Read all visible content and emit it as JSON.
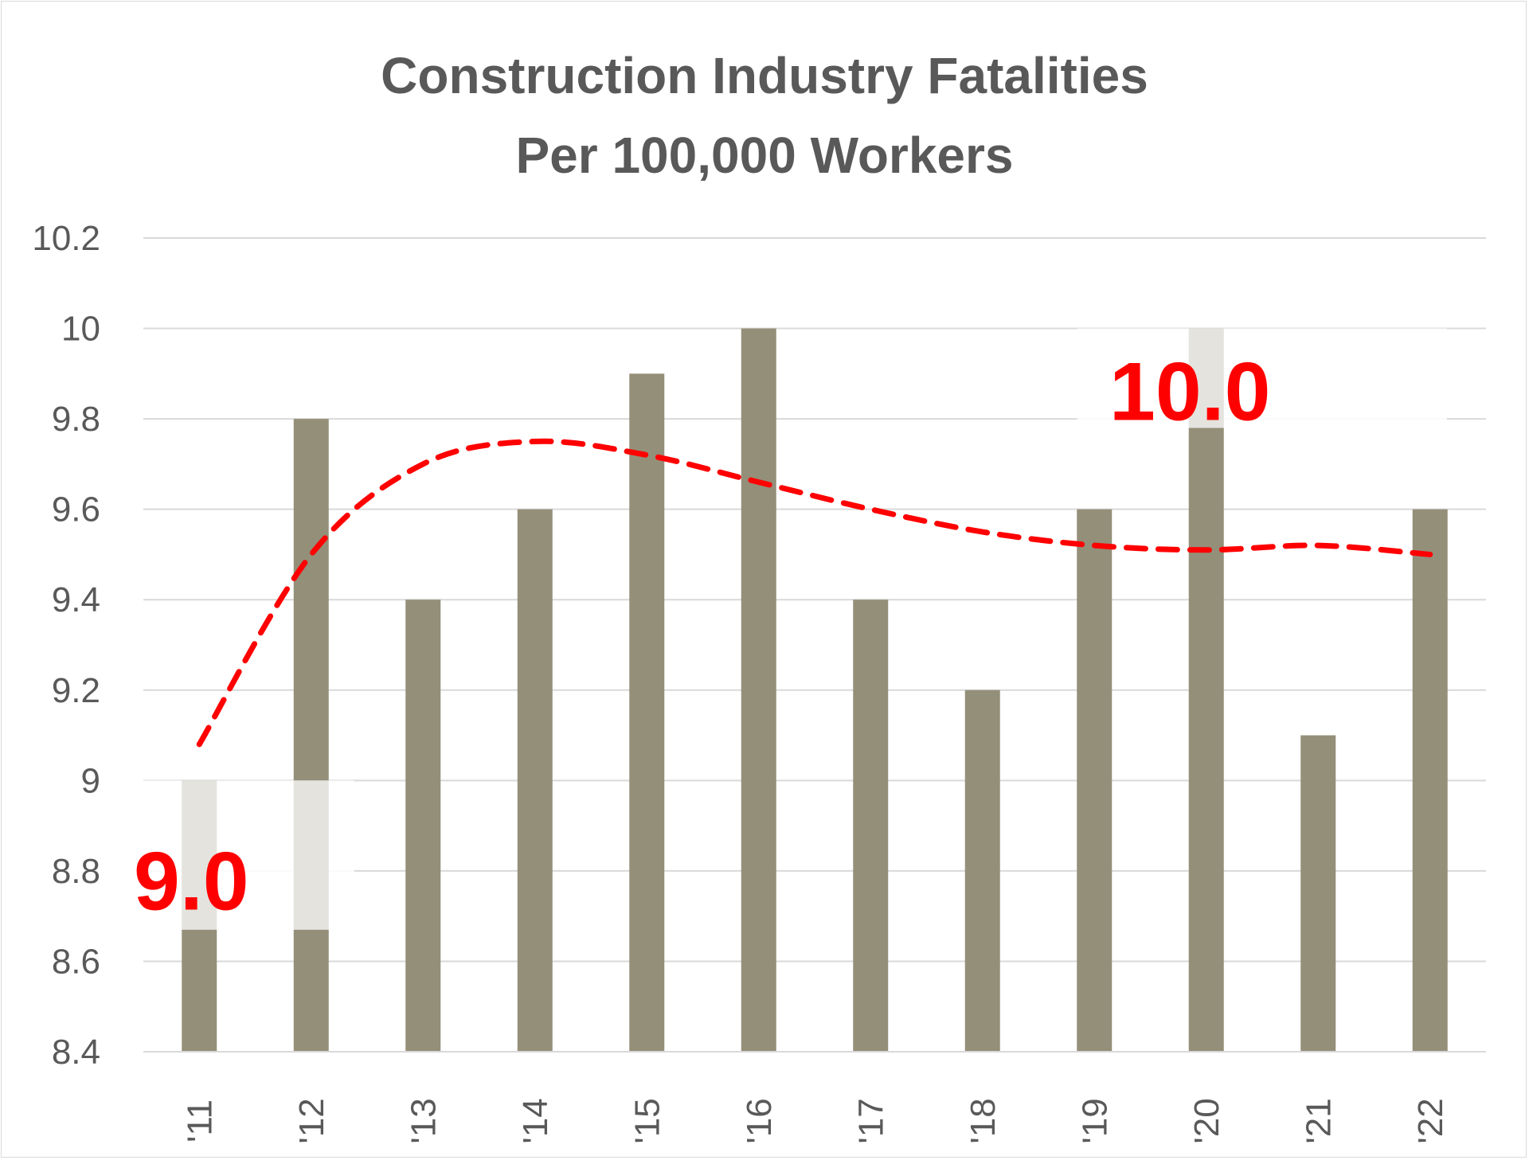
{
  "chart_data": {
    "type": "bar",
    "title": [
      "Construction Industry Fatalities",
      "Per 100,000 Workers"
    ],
    "categories": [
      "'11",
      "'12",
      "'13",
      "'14",
      "'15",
      "'16",
      "'17",
      "'18",
      "'19",
      "'20",
      "'21",
      "'22"
    ],
    "values": [
      9.0,
      9.8,
      9.4,
      9.6,
      9.9,
      10.0,
      9.4,
      9.2,
      9.6,
      10.0,
      9.1,
      9.6
    ],
    "ylim": [
      8.4,
      10.2
    ],
    "yticks": [
      "8.4",
      "8.6",
      "8.8",
      "9",
      "9.2",
      "9.4",
      "9.6",
      "9.8",
      "10",
      "10.2"
    ],
    "ytick_values": [
      8.4,
      8.6,
      8.8,
      9.0,
      9.2,
      9.4,
      9.6,
      9.8,
      10.0,
      10.2
    ],
    "xlabel": "",
    "ylabel": "",
    "grid": true,
    "legend": "none",
    "trendline": {
      "style": "dashed",
      "color": "#ff0000",
      "values": [
        9.08,
        9.5,
        9.7,
        9.75,
        9.72,
        9.66,
        9.6,
        9.55,
        9.52,
        9.51,
        9.52,
        9.5
      ]
    },
    "annotations": [
      {
        "text": "9.0",
        "category_index": 0,
        "color": "#ff0000"
      },
      {
        "text": "10.0",
        "category_index": 9,
        "color": "#ff0000"
      }
    ],
    "colors": {
      "bar": "#948f79",
      "bar_highlight": "#e4e3de",
      "grid": "#d9d9d9",
      "text": "#595959"
    }
  }
}
